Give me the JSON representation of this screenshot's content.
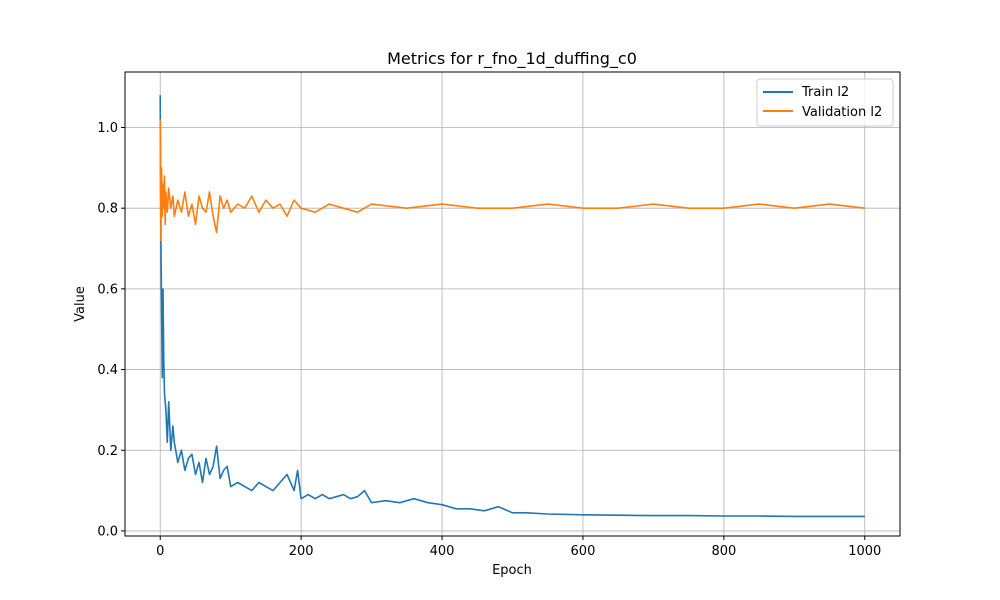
{
  "chart_data": {
    "type": "line",
    "title": "Metrics for r_fno_1d_duffing_c0",
    "xlabel": "Epoch",
    "ylabel": "Value",
    "xlim": [
      -50,
      1050
    ],
    "ylim": [
      -0.0125,
      1.1375
    ],
    "xticks": [
      0,
      200,
      400,
      600,
      800,
      1000
    ],
    "xtick_labels": [
      "0",
      "200",
      "400",
      "600",
      "800",
      "1000"
    ],
    "yticks": [
      0.0,
      0.2,
      0.4,
      0.6,
      0.8,
      1.0
    ],
    "ytick_labels": [
      "0.0",
      "0.2",
      "0.4",
      "0.6",
      "0.8",
      "1.0"
    ],
    "grid": true,
    "legend_position": "top-right",
    "series": [
      {
        "name": "Train l2",
        "color": "#1f77b4",
        "x": [
          0,
          1,
          2,
          3,
          4,
          5,
          6,
          8,
          10,
          12,
          15,
          18,
          20,
          25,
          30,
          35,
          40,
          45,
          50,
          55,
          60,
          65,
          70,
          75,
          80,
          85,
          90,
          95,
          100,
          110,
          120,
          130,
          140,
          150,
          160,
          170,
          180,
          190,
          195,
          200,
          210,
          220,
          230,
          240,
          250,
          260,
          270,
          280,
          290,
          300,
          320,
          340,
          360,
          380,
          400,
          420,
          440,
          460,
          480,
          500,
          520,
          550,
          600,
          650,
          700,
          750,
          800,
          850,
          900,
          950,
          1000
        ],
        "y": [
          1.08,
          0.72,
          0.55,
          0.38,
          0.6,
          0.42,
          0.34,
          0.3,
          0.22,
          0.32,
          0.2,
          0.26,
          0.22,
          0.17,
          0.2,
          0.15,
          0.18,
          0.19,
          0.14,
          0.17,
          0.12,
          0.18,
          0.14,
          0.16,
          0.21,
          0.13,
          0.15,
          0.16,
          0.11,
          0.12,
          0.11,
          0.1,
          0.12,
          0.11,
          0.1,
          0.12,
          0.14,
          0.1,
          0.15,
          0.08,
          0.09,
          0.08,
          0.09,
          0.08,
          0.085,
          0.09,
          0.08,
          0.085,
          0.1,
          0.07,
          0.075,
          0.07,
          0.08,
          0.07,
          0.065,
          0.055,
          0.055,
          0.05,
          0.06,
          0.045,
          0.045,
          0.042,
          0.04,
          0.039,
          0.038,
          0.038,
          0.037,
          0.037,
          0.036,
          0.036,
          0.036
        ]
      },
      {
        "name": "Validation l2",
        "color": "#ff7f0e",
        "x": [
          0,
          1,
          2,
          3,
          4,
          5,
          6,
          7,
          8,
          10,
          12,
          15,
          18,
          20,
          25,
          30,
          35,
          40,
          45,
          50,
          55,
          60,
          65,
          70,
          75,
          80,
          85,
          90,
          95,
          100,
          110,
          120,
          130,
          140,
          150,
          160,
          170,
          180,
          190,
          200,
          220,
          240,
          260,
          280,
          300,
          350,
          400,
          450,
          500,
          550,
          600,
          650,
          700,
          750,
          800,
          850,
          900,
          950,
          1000
        ],
        "y": [
          1.02,
          0.72,
          0.9,
          0.78,
          0.86,
          0.8,
          0.88,
          0.76,
          0.84,
          0.79,
          0.85,
          0.8,
          0.83,
          0.78,
          0.82,
          0.79,
          0.84,
          0.78,
          0.81,
          0.76,
          0.83,
          0.8,
          0.79,
          0.84,
          0.78,
          0.74,
          0.83,
          0.8,
          0.82,
          0.79,
          0.81,
          0.8,
          0.83,
          0.79,
          0.82,
          0.8,
          0.81,
          0.78,
          0.82,
          0.8,
          0.79,
          0.81,
          0.8,
          0.79,
          0.81,
          0.8,
          0.81,
          0.8,
          0.8,
          0.81,
          0.8,
          0.8,
          0.81,
          0.8,
          0.8,
          0.81,
          0.8,
          0.81,
          0.8
        ]
      }
    ]
  }
}
